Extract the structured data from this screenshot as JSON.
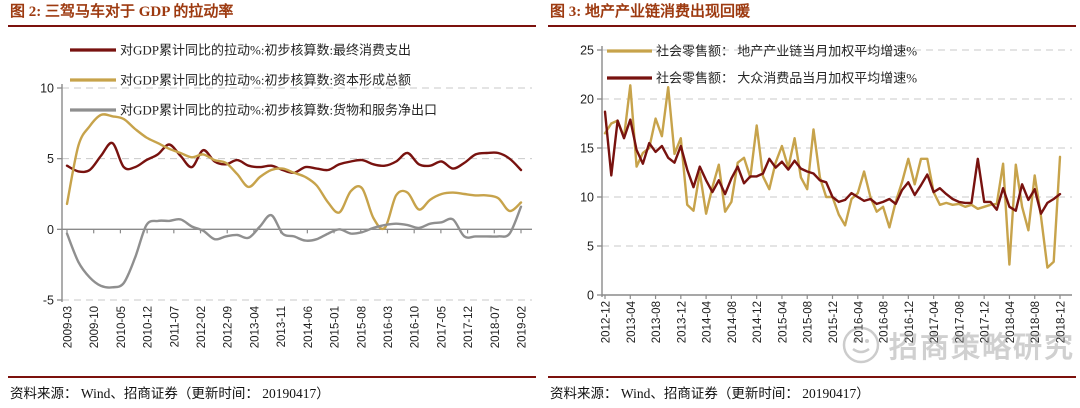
{
  "theme": {
    "rule_color": "#7c110d",
    "title_color": "#9d3a10",
    "axis_color": "#8a8a8a",
    "grid_color": "#c9c9c9"
  },
  "watermark": {
    "text": "招商策略研究"
  },
  "panels": [
    {
      "title": "图 2:  三驾马车对于 GDP 的拉动率",
      "source": "资料来源： Wind、招商证券（更新时间： 20190417）"
    },
    {
      "title": "图 3:  地产产业链消费出现回暖",
      "source": "资料来源： Wind、招商证券（更新时间： 20190417）"
    }
  ],
  "chart_data": [
    {
      "type": "line",
      "title": "三驾马车对于 GDP 的拉动率",
      "smooth": true,
      "ylim": [
        -5,
        10
      ],
      "yticks": [
        10,
        5,
        0,
        -5
      ],
      "grid": "dashed horizontal, solid axis at 0",
      "legend_position": "top-left-inside",
      "x_tick_labels": [
        "2009-03",
        "2009-10",
        "2010-05",
        "2010-12",
        "2011-07",
        "2012-02",
        "2012-09",
        "2013-04",
        "2013-11",
        "2014-06",
        "2015-01",
        "2015-08",
        "2016-03",
        "2016-10",
        "2017-05",
        "2017-12",
        "2018-07",
        "2019-02"
      ],
      "x_note": "quarterly data points 2009Q1-2019Q1",
      "series": [
        {
          "name": "对GDP累计同比的拉动%:初步核算数:最终消费支出",
          "color": "#78120f",
          "values": [
            4.5,
            4.1,
            4.2,
            5.2,
            6.1,
            4.4,
            4.4,
            4.9,
            5.3,
            6.0,
            5.2,
            4.4,
            5.6,
            4.8,
            4.6,
            4.9,
            4.5,
            4.4,
            4.5,
            4.2,
            4.0,
            4.4,
            4.3,
            4.2,
            4.6,
            4.8,
            4.9,
            4.6,
            4.5,
            4.8,
            5.4,
            4.6,
            4.5,
            4.8,
            4.3,
            4.7,
            5.3,
            5.4,
            5.4,
            5.0,
            4.2
          ]
        },
        {
          "name": "对GDP累计同比的拉动%:初步核算数:资本形成总额",
          "color": "#c7a34b",
          "values": [
            1.8,
            5.9,
            7.3,
            8.1,
            8.0,
            7.8,
            7.1,
            6.5,
            6.1,
            5.7,
            5.4,
            5.1,
            5.3,
            4.9,
            4.7,
            3.9,
            3.0,
            3.7,
            4.2,
            4.3,
            4.0,
            3.7,
            3.1,
            1.9,
            1.2,
            2.7,
            2.9,
            0.8,
            0.1,
            2.4,
            2.6,
            1.4,
            2.1,
            2.5,
            2.6,
            2.5,
            2.4,
            2.4,
            2.2,
            1.3,
            1.9
          ]
        },
        {
          "name": "对GDP累计同比的拉动%:初步核算数:货物和服务净出口",
          "color": "#8f8f8f",
          "values": [
            -0.3,
            -2.3,
            -3.4,
            -4.0,
            -4.1,
            -3.8,
            -2.0,
            0.3,
            0.6,
            0.6,
            0.7,
            0.2,
            -0.1,
            -0.7,
            -0.5,
            -0.4,
            -0.6,
            0.2,
            1.0,
            -0.3,
            -0.5,
            -0.8,
            -0.7,
            -0.3,
            0.0,
            -0.3,
            -0.2,
            0.1,
            0.3,
            0.4,
            0.3,
            0.1,
            0.4,
            0.5,
            0.7,
            -0.5,
            -0.5,
            -0.5,
            -0.5,
            -0.3,
            1.6
          ]
        }
      ]
    },
    {
      "type": "line",
      "title": "地产产业链消费出现回暖",
      "smooth": false,
      "ylim": [
        0,
        25
      ],
      "yticks": [
        25,
        20,
        15,
        10,
        5,
        0
      ],
      "grid": "dashed horizontal, solid axis at 0",
      "legend_position": "top-left-inside",
      "x_tick_labels": [
        "2012-12",
        "2013-04",
        "2013-08",
        "2013-12",
        "2014-04",
        "2014-08",
        "2014-12",
        "2015-04",
        "2015-08",
        "2015-12",
        "2016-04",
        "2016-08",
        "2016-12",
        "2017-04",
        "2017-08",
        "2017-12",
        "2018-04",
        "2018-08",
        "2018-12"
      ],
      "x_note": "monthly data points 2012-12 to 2018-12",
      "series": [
        {
          "name": "社会零售额： 地产产业链当月加权平均增速%",
          "color": "#c7a34b",
          "values": [
            16.5,
            17.5,
            17.8,
            16.1,
            21.4,
            13.1,
            14.5,
            15.0,
            18.0,
            16.2,
            21.2,
            14.4,
            16.0,
            9.2,
            8.6,
            12.5,
            8.3,
            11.0,
            13.3,
            8.5,
            9.5,
            13.5,
            14.0,
            12.0,
            17.3,
            12.1,
            10.8,
            13.5,
            15.2,
            13.0,
            16.0,
            12.0,
            10.8,
            16.9,
            12.0,
            10.0,
            10.0,
            8.2,
            7.1,
            9.8,
            10.4,
            12.6,
            10.0,
            8.5,
            9.0,
            6.9,
            9.5,
            11.5,
            13.9,
            11.3,
            13.9,
            13.9,
            10.5,
            9.2,
            9.4,
            9.2,
            9.3,
            9.0,
            9.2,
            8.8,
            9.0,
            9.2,
            9.3,
            13.4,
            3.1,
            13.3,
            9.0,
            6.6,
            12.2,
            8.0,
            2.8,
            3.4,
            14.1
          ]
        },
        {
          "name": "社会零售额： 大众消费品当月加权平均增速%",
          "color": "#78120f",
          "values": [
            18.7,
            12.2,
            17.8,
            16.0,
            17.9,
            14.8,
            13.4,
            15.5,
            14.6,
            15.2,
            14.0,
            13.5,
            15.2,
            12.8,
            11.0,
            13.1,
            11.7,
            10.5,
            11.7,
            10.3,
            11.9,
            13.1,
            11.4,
            12.1,
            12.1,
            12.4,
            13.9,
            13.0,
            13.6,
            12.8,
            13.7,
            12.9,
            12.6,
            12.4,
            11.7,
            11.5,
            10.0,
            9.5,
            9.7,
            10.4,
            10.0,
            9.6,
            9.8,
            9.3,
            9.5,
            9.8,
            9.3,
            10.7,
            11.5,
            10.2,
            11.2,
            12.3,
            10.5,
            10.9,
            10.3,
            9.8,
            9.5,
            9.4,
            9.4,
            13.9,
            9.5,
            9.5,
            8.7,
            10.9,
            9.0,
            8.6,
            11.3,
            9.7,
            10.8,
            8.3,
            9.4,
            9.8,
            10.3
          ]
        }
      ]
    }
  ]
}
